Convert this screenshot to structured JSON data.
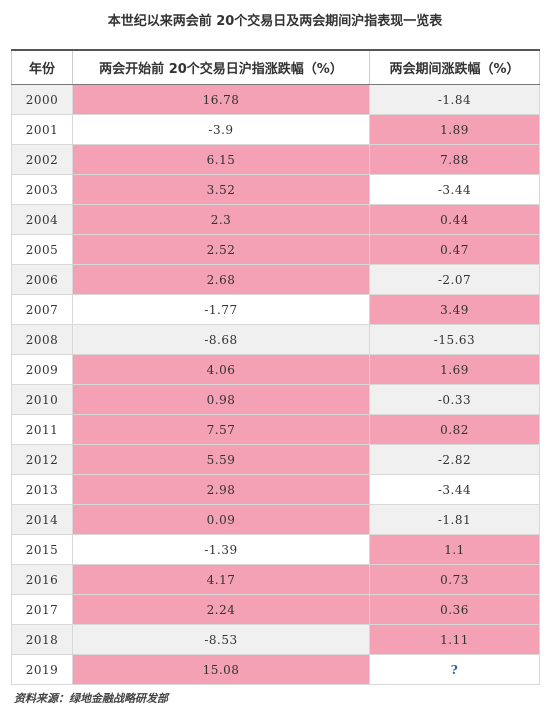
{
  "title": "本世纪以来两会前 20个交易日及两会期间沪指表现一览表",
  "table": {
    "headers": [
      "年份",
      "两会开始前 20个交易日沪指涨跌幅（%）",
      "两会期间涨跌幅（%）"
    ],
    "rows": [
      {
        "year": "2000",
        "before": "16.78",
        "during": "-1.84"
      },
      {
        "year": "2001",
        "before": "-3.9",
        "during": "1.89"
      },
      {
        "year": "2002",
        "before": "6.15",
        "during": "7.88"
      },
      {
        "year": "2003",
        "before": "3.52",
        "during": "-3.44"
      },
      {
        "year": "2004",
        "before": "2.3",
        "during": "0.44"
      },
      {
        "year": "2005",
        "before": "2.52",
        "during": "0.47"
      },
      {
        "year": "2006",
        "before": "2.68",
        "during": "-2.07"
      },
      {
        "year": "2007",
        "before": "-1.77",
        "during": "3.49"
      },
      {
        "year": "2008",
        "before": "-8.68",
        "during": "-15.63"
      },
      {
        "year": "2009",
        "before": "4.06",
        "during": "1.69"
      },
      {
        "year": "2010",
        "before": "0.98",
        "during": "-0.33"
      },
      {
        "year": "2011",
        "before": "7.57",
        "during": "0.82"
      },
      {
        "year": "2012",
        "before": "5.59",
        "during": "-2.82"
      },
      {
        "year": "2013",
        "before": "2.98",
        "during": "-3.44"
      },
      {
        "year": "2014",
        "before": "0.09",
        "during": "-1.81"
      },
      {
        "year": "2015",
        "before": "-1.39",
        "during": "1.1"
      },
      {
        "year": "2016",
        "before": "4.17",
        "during": "0.73"
      },
      {
        "year": "2017",
        "before": "2.24",
        "during": "0.36"
      },
      {
        "year": "2018",
        "before": "-8.53",
        "during": "1.11"
      },
      {
        "year": "2019",
        "before": "15.08",
        "during": "?"
      }
    ]
  },
  "colors": {
    "positive": "#f4a0b5",
    "negative_shaded": "#f0f0f0",
    "negative_plain": "#ffffff",
    "question_mark": "#2d5f9e"
  },
  "source": "资料来源：绿地金融战略研发部"
}
